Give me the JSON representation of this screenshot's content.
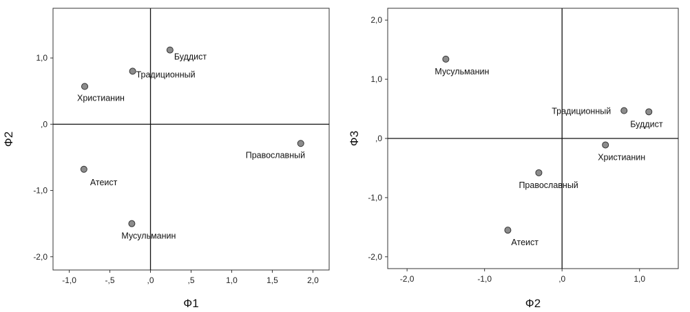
{
  "chart_data": [
    {
      "type": "scatter",
      "xlabel": "Ф1",
      "ylabel": "Ф2",
      "xlim": [
        -1.2,
        2.2
      ],
      "ylim": [
        -2.2,
        1.75
      ],
      "xticks": [
        -1.0,
        -0.5,
        0.0,
        0.5,
        1.0,
        1.5,
        2.0
      ],
      "xtick_labels": [
        "-1,0",
        "-,5",
        ",0",
        ",5",
        "1,0",
        "1,5",
        "2,0"
      ],
      "yticks": [
        1.0,
        0.0,
        -1.0,
        -2.0
      ],
      "ytick_labels": [
        "1,0",
        ",0",
        "-1,0",
        "-2,0"
      ],
      "points": [
        {
          "label": "Буддист",
          "x": 0.24,
          "y": 1.12
        },
        {
          "label": "Традиционный",
          "x": -0.22,
          "y": 0.8
        },
        {
          "label": "Христианин",
          "x": -0.81,
          "y": 0.57
        },
        {
          "label": "Православный",
          "x": 1.85,
          "y": -0.29
        },
        {
          "label": "Атеист",
          "x": -0.82,
          "y": -0.68
        },
        {
          "label": "Мусульманин",
          "x": -0.23,
          "y": -1.5
        }
      ]
    },
    {
      "type": "scatter",
      "xlabel": "Ф2",
      "ylabel": "Ф3",
      "xlim": [
        -2.25,
        1.5
      ],
      "ylim": [
        -2.2,
        2.2
      ],
      "xticks": [
        -2.0,
        -1.0,
        0.0,
        1.0
      ],
      "xtick_labels": [
        "-2,0",
        "-1,0",
        ",0",
        "1,0"
      ],
      "yticks": [
        2.0,
        1.0,
        0.0,
        -1.0,
        -2.0
      ],
      "ytick_labels": [
        "2,0",
        "1,0",
        ",0",
        "-1,0",
        "-2,0"
      ],
      "points": [
        {
          "label": "Мусульманин",
          "x": -1.5,
          "y": 1.34
        },
        {
          "label": "Традиционный",
          "x": 0.8,
          "y": 0.47
        },
        {
          "label": "Буддист",
          "x": 1.12,
          "y": 0.45
        },
        {
          "label": "Христианин",
          "x": 0.56,
          "y": -0.11
        },
        {
          "label": "Православный",
          "x": -0.3,
          "y": -0.58
        },
        {
          "label": "Атеист",
          "x": -0.7,
          "y": -1.55
        }
      ]
    }
  ]
}
